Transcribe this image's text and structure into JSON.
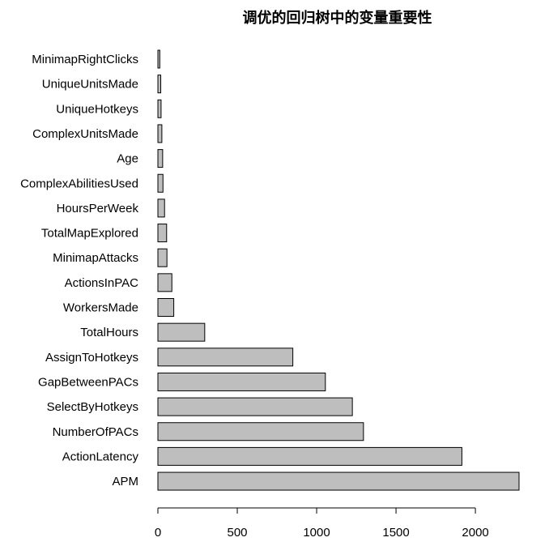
{
  "chart_data": {
    "type": "bar",
    "orientation": "horizontal",
    "title": "调优的回归树中的变量重要性",
    "xlabel": "",
    "ylabel": "",
    "categories": [
      "MinimapRightClicks",
      "UniqueUnitsMade",
      "UniqueHotkeys",
      "ComplexUnitsMade",
      "Age",
      "ComplexAbilitiesUsed",
      "HoursPerWeek",
      "TotalMapExplored",
      "MinimapAttacks",
      "ActionsInPAC",
      "WorkersMade",
      "TotalHours",
      "AssignToHotkeys",
      "GapBetweenPACs",
      "SelectByHotkeys",
      "NumberOfPACs",
      "ActionLatency",
      "APM"
    ],
    "values": [
      12,
      18,
      20,
      25,
      30,
      32,
      42,
      55,
      57,
      88,
      100,
      295,
      850,
      1055,
      1225,
      1295,
      1915,
      2275
    ],
    "xlim": [
      0,
      2300
    ],
    "xticks": [
      0,
      500,
      1000,
      1500,
      2000
    ],
    "bar_color": "#bebebe",
    "grid": false
  }
}
